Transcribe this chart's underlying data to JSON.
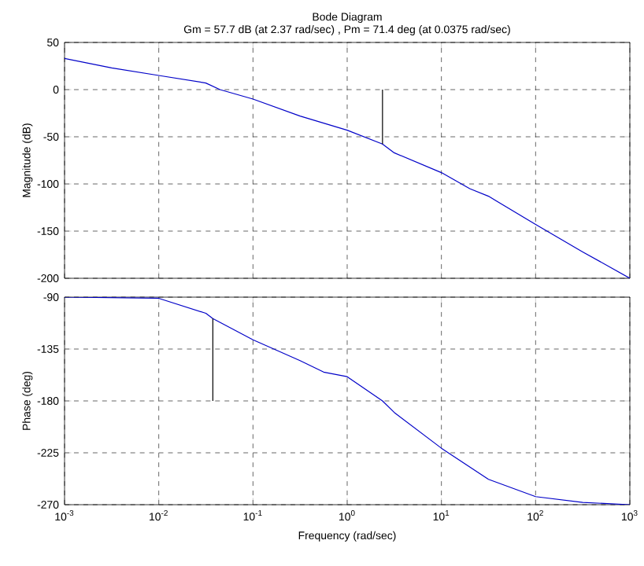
{
  "chart_data": [
    {
      "type": "line",
      "title": "Bode Diagram",
      "subtitle": "Gm = 57.7 dB (at 2.37 rad/sec) ,  Pm = 71.4 deg (at 0.0375 rad/sec)",
      "ylabel": "Magnitude (dB)",
      "log": "x",
      "grid": true,
      "tick_labels": "y",
      "xlim": [
        0.001,
        1000
      ],
      "ylim": [
        -200,
        50
      ],
      "yticks": [
        -200,
        -150,
        -100,
        -50,
        0,
        50
      ],
      "xticks": [
        {
          "value": 0.001,
          "label": null
        },
        {
          "value": 0.01,
          "label": null
        },
        {
          "value": 0.1,
          "label": null
        },
        {
          "value": 1,
          "label": null
        },
        {
          "value": 10,
          "label": null
        },
        {
          "value": 100,
          "label": null
        },
        {
          "value": 1000,
          "label": null
        }
      ],
      "series": [
        {
          "color": "#0000c8",
          "x": [
            0.001,
            0.00316,
            0.01,
            0.0316,
            0.0447,
            0.1,
            0.316,
            1,
            2.37,
            3.16,
            10,
            20,
            31.6,
            100,
            316,
            1000
          ],
          "values": [
            33,
            23,
            15,
            7,
            0,
            -10,
            -28,
            -43,
            -57.7,
            -67,
            -88,
            -105,
            -113,
            -143,
            -172,
            -200
          ]
        },
        {
          "color": "#000000",
          "x": [
            2.37,
            2.37
          ],
          "values": [
            0,
            -57.7
          ]
        }
      ]
    },
    {
      "type": "line",
      "xlabel": "Frequency (rad/sec)",
      "ylabel": "Phase (deg)",
      "log": "x",
      "grid": true,
      "xlim": [
        0.001,
        1000
      ],
      "ylim": [
        -270,
        -90
      ],
      "yticks": [
        -270,
        -225,
        -180,
        -135,
        -90
      ],
      "xticks": [
        {
          "value": 0.001,
          "label": "10$^{-3}$"
        },
        {
          "value": 0.01,
          "label": "10$^{-2}$"
        },
        {
          "value": 0.1,
          "label": "10$^{-1}$"
        },
        {
          "value": 1,
          "label": "10$^{0}$"
        },
        {
          "value": 10,
          "label": "10$^{1}$"
        },
        {
          "value": 100,
          "label": "10$^{2}$"
        },
        {
          "value": 1000,
          "label": "10$^{3}$"
        }
      ],
      "series": [
        {
          "color": "#0000c8",
          "x": [
            0.001,
            0.01,
            0.0316,
            0.0375,
            0.1,
            0.316,
            0.562,
            1,
            2.37,
            3.16,
            10,
            31.6,
            100,
            316,
            1000
          ],
          "values": [
            -90,
            -91,
            -104,
            -108.6,
            -127,
            -145,
            -155,
            -159,
            -180,
            -190,
            -221,
            -248,
            -263,
            -268,
            -270
          ]
        },
        {
          "color": "#000000",
          "x": [
            0.0375,
            0.0375
          ],
          "values": [
            -180,
            -108.6
          ]
        }
      ]
    }
  ]
}
